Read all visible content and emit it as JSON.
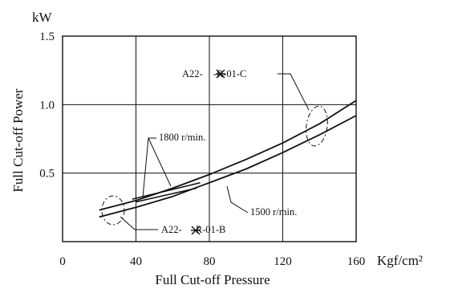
{
  "chart_data": {
    "type": "line",
    "xlabel": "Full Cut-off Pressure",
    "ylabel": "Full Cut-off Power",
    "x_unit": "Kgf/cm²",
    "y_unit": "kW",
    "xlim": [
      0,
      160
    ],
    "ylim": [
      0,
      1.5
    ],
    "x_ticks": [
      "0",
      "40",
      "80",
      "120",
      "160"
    ],
    "y_ticks": [
      "0.5",
      "1.0",
      "1.5"
    ],
    "grid": true,
    "series": [
      {
        "name": "A22-R-01-C",
        "x": [
          20,
          40,
          60,
          80,
          100,
          120,
          140,
          160
        ],
        "y": [
          0.23,
          0.3,
          0.39,
          0.49,
          0.6,
          0.72,
          0.86,
          1.03
        ]
      },
      {
        "name": "A22-R-01-B",
        "x": [
          20,
          40,
          60,
          80,
          100,
          120,
          140,
          160
        ],
        "y": [
          0.18,
          0.25,
          0.33,
          0.43,
          0.53,
          0.65,
          0.78,
          0.92
        ]
      },
      {
        "name": "1800 r/min.",
        "x": [
          38,
          75
        ],
        "y": [
          0.31,
          0.43
        ]
      },
      {
        "name": "1800 r/min.",
        "x": [
          40,
          73
        ],
        "y": [
          0.29,
          0.39
        ]
      }
    ],
    "annotations": {
      "speed_1800": "1800 r/min.",
      "speed_1500": "1500 r/min.",
      "model_c": "A22-",
      "model_c_suffix": "-R-01-C",
      "model_b": "A22-",
      "model_b_suffix": "-R-01-B"
    }
  }
}
